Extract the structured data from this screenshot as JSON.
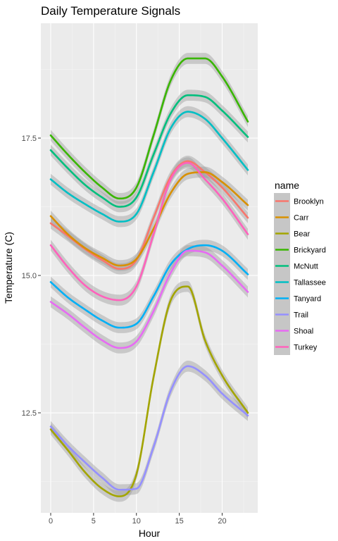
{
  "chart_data": {
    "type": "line",
    "title": "Daily Temperature Signals",
    "xlabel": "Hour",
    "ylabel": "Temperature (C)",
    "xlim": [
      -1.15,
      24.15
    ],
    "ylim": [
      10.68,
      19.59
    ],
    "x_ticks": [
      0,
      5,
      10,
      15,
      20
    ],
    "y_ticks": [
      12.5,
      15.0,
      17.5
    ],
    "y_tick_labels": [
      "12.5",
      "15.0",
      "17.5"
    ],
    "grid": true,
    "smoothing_band": true,
    "legend_title": "name",
    "legend_position": "right",
    "x": [
      0,
      2,
      4,
      6,
      8,
      10,
      12,
      14,
      16,
      18,
      20,
      23
    ],
    "series": [
      {
        "name": "Brooklyn",
        "color": "#F8766D",
        "values": [
          15.95,
          15.72,
          15.48,
          15.28,
          15.12,
          15.28,
          16.05,
          16.8,
          17.08,
          16.88,
          16.6,
          16.05
        ]
      },
      {
        "name": "Carr",
        "color": "#D89000",
        "values": [
          16.08,
          15.75,
          15.5,
          15.32,
          15.18,
          15.3,
          15.85,
          16.5,
          16.85,
          16.88,
          16.7,
          16.28
        ]
      },
      {
        "name": "Bear",
        "color": "#A3A500",
        "values": [
          12.2,
          11.82,
          11.42,
          11.12,
          10.98,
          11.38,
          13.15,
          14.55,
          14.8,
          13.82,
          13.18,
          12.5
        ]
      },
      {
        "name": "Brickyard",
        "color": "#39B600",
        "values": [
          17.55,
          17.2,
          16.88,
          16.6,
          16.4,
          16.6,
          17.55,
          18.55,
          18.95,
          18.95,
          18.62,
          17.8
        ]
      },
      {
        "name": "McNutt",
        "color": "#00BF7D",
        "values": [
          17.28,
          16.95,
          16.65,
          16.42,
          16.25,
          16.42,
          17.2,
          17.95,
          18.28,
          18.25,
          18.0,
          17.52
        ]
      },
      {
        "name": "Tallassee",
        "color": "#00BFC4",
        "values": [
          16.75,
          16.5,
          16.3,
          16.12,
          15.98,
          16.12,
          16.88,
          17.68,
          17.98,
          17.85,
          17.5,
          16.92
        ]
      },
      {
        "name": "Tanyard",
        "color": "#00B0F6",
        "values": [
          14.88,
          14.6,
          14.38,
          14.18,
          14.05,
          14.12,
          14.62,
          15.2,
          15.48,
          15.55,
          15.45,
          15.02
        ]
      },
      {
        "name": "Trail",
        "color": "#9590FF",
        "values": [
          12.25,
          11.9,
          11.6,
          11.32,
          11.1,
          11.12,
          11.88,
          12.9,
          13.35,
          13.18,
          12.85,
          12.45
        ]
      },
      {
        "name": "Shoal",
        "color": "#E76BF3",
        "values": [
          14.52,
          14.3,
          14.05,
          13.82,
          13.68,
          13.8,
          14.35,
          15.05,
          15.45,
          15.42,
          15.18,
          14.7
        ]
      },
      {
        "name": "Turkey",
        "color": "#FF62BC",
        "values": [
          15.55,
          15.15,
          14.82,
          14.62,
          14.55,
          14.8,
          15.75,
          16.75,
          17.05,
          16.75,
          16.4,
          15.75
        ]
      }
    ]
  }
}
